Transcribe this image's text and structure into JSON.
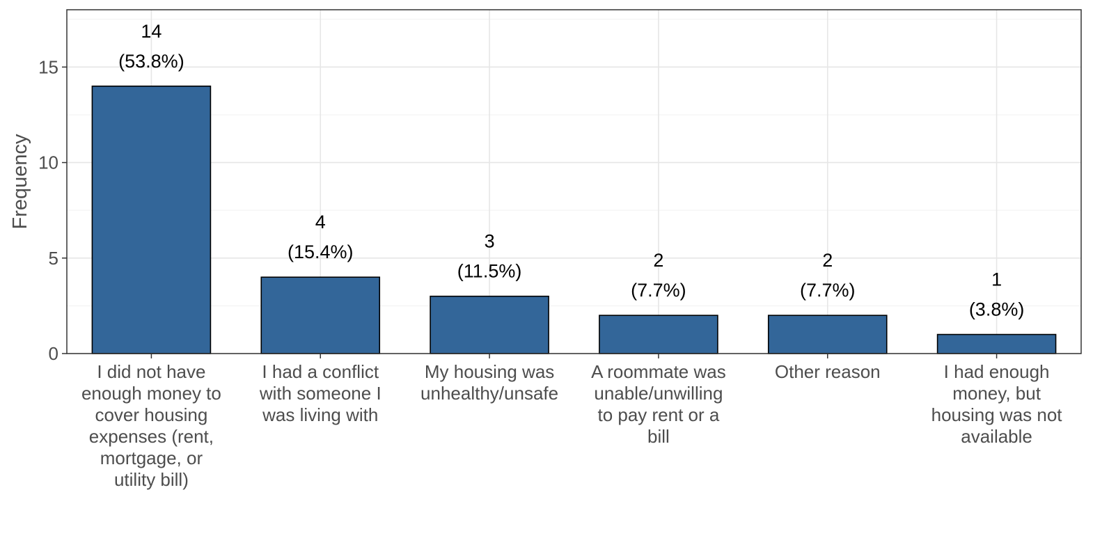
{
  "chart_data": {
    "type": "bar",
    "title": "",
    "xlabel": "",
    "ylabel": "Frequency",
    "ylim": [
      0,
      18
    ],
    "y_ticks": [
      0,
      5,
      10,
      15
    ],
    "grid": true,
    "bar_color": "#336699",
    "bar_outline_color": "#000000",
    "categories": [
      [
        "I did not have",
        "enough money to",
        "cover housing",
        "expenses (rent,",
        "mortgage, or",
        "utility bill)"
      ],
      [
        "I had a conflict",
        "with someone I",
        "was living with"
      ],
      [
        "My housing was",
        "unhealthy/unsafe"
      ],
      [
        "A roommate was",
        "unable/unwilling",
        "to pay rent or a",
        "bill"
      ],
      [
        "Other reason"
      ],
      [
        "I had enough",
        "money, but",
        "housing was not",
        "available"
      ]
    ],
    "values": [
      14,
      4,
      3,
      2,
      2,
      1
    ],
    "data_labels": [
      [
        "14",
        "(53.8%)"
      ],
      [
        "4",
        "(15.4%)"
      ],
      [
        "3",
        "(11.5%)"
      ],
      [
        "2",
        "(7.7%)"
      ],
      [
        "2",
        "(7.7%)"
      ],
      [
        "1",
        "(3.8%)"
      ]
    ]
  }
}
